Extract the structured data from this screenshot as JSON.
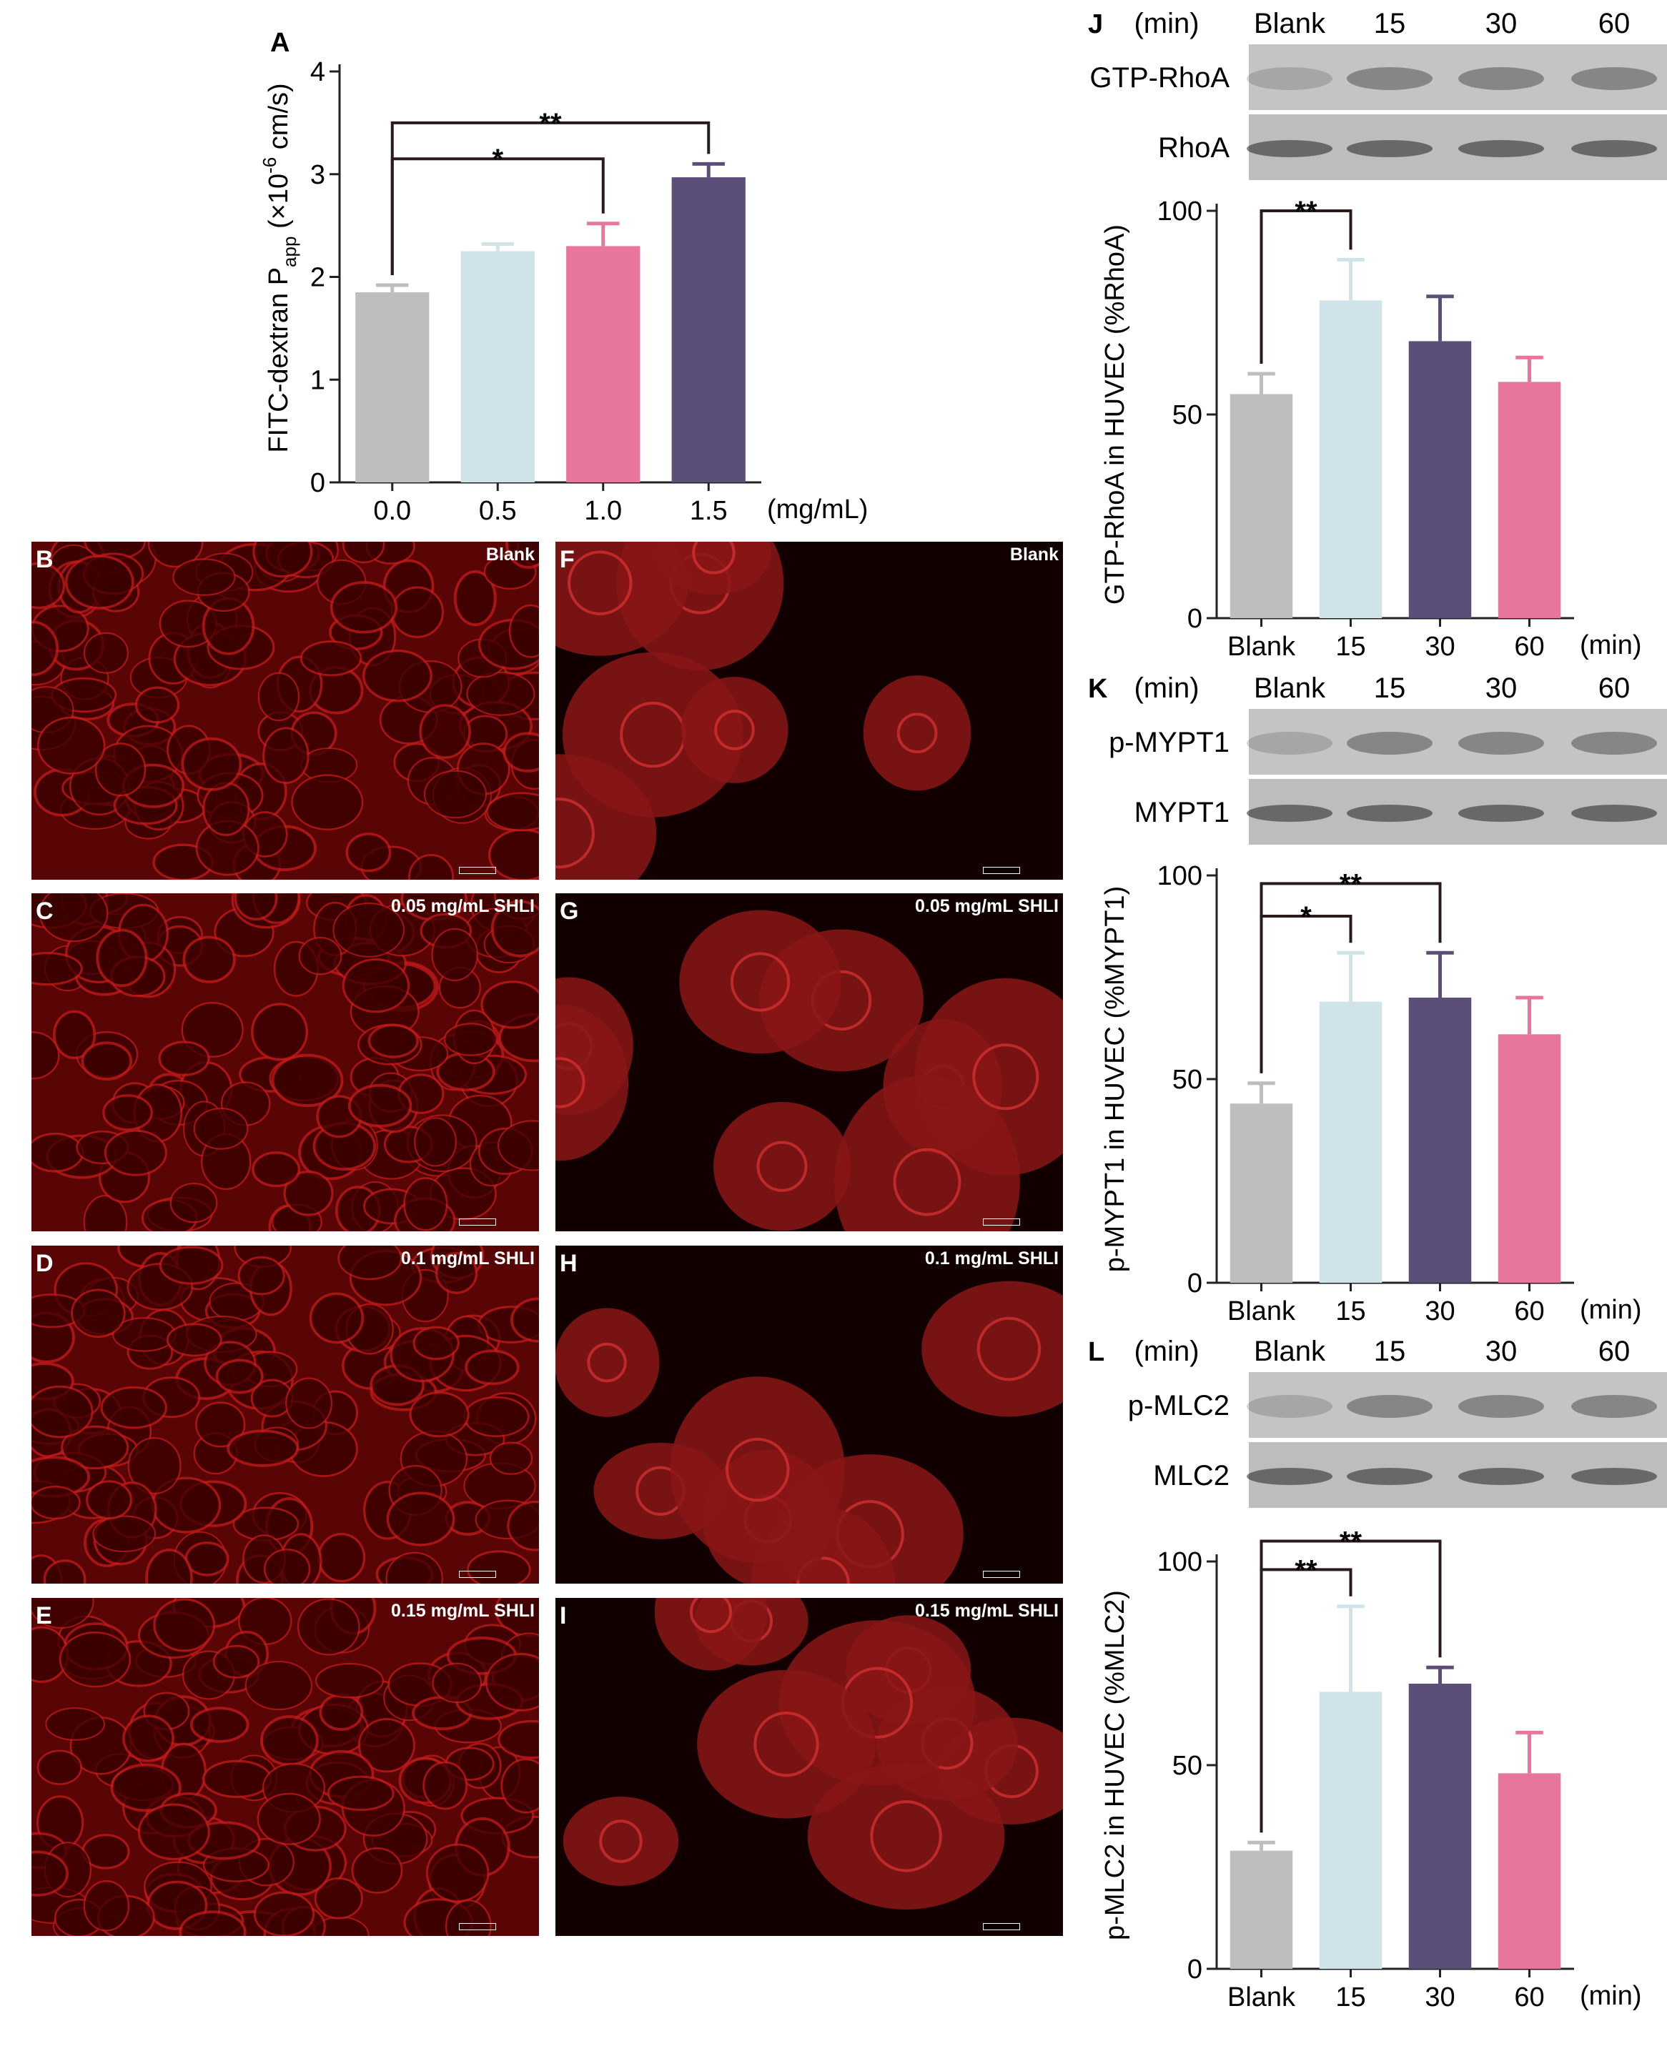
{
  "colors": {
    "blank": "#bebebe",
    "c1": "#cfe3e8",
    "c2": "#e8769a",
    "c3": "#5b4f7a",
    "red_bg": "#3a0000",
    "red_cell": "#c01818"
  },
  "chart_data": [
    {
      "id": "A",
      "type": "bar",
      "panel_letter": "A",
      "categories": [
        "0.0",
        "0.5",
        "1.0",
        "1.5"
      ],
      "values": [
        1.85,
        2.25,
        2.3,
        2.97
      ],
      "errors": [
        0.07,
        0.07,
        0.22,
        0.13
      ],
      "bar_colors": [
        "#bebebe",
        "#cfe3e8",
        "#e8769a",
        "#5b4f7a"
      ],
      "ylim": [
        0,
        4
      ],
      "yticks": [
        "0",
        "1",
        "2",
        "3",
        "4"
      ],
      "ylabel_main": "FITC-dextran P",
      "ylabel_sub": "app",
      "ylabel_tail": " (×10",
      "ylabel_exp": "-6",
      "ylabel_unit": " cm/s)",
      "xunit": "(mg/mL)",
      "significance": [
        {
          "from": 0,
          "to": 3,
          "label": "**",
          "level": 3.5
        },
        {
          "from": 0,
          "to": 2,
          "label": "*",
          "level": 3.15
        }
      ]
    },
    {
      "id": "J",
      "type": "bar",
      "panel_letter": "J",
      "categories": [
        "Blank",
        "15",
        "30",
        "60"
      ],
      "values": [
        55,
        78,
        68,
        58
      ],
      "errors": [
        5,
        10,
        11,
        6
      ],
      "bar_colors": [
        "#bebebe",
        "#cfe3e8",
        "#5b4f7a",
        "#e8769a"
      ],
      "ylim": [
        0,
        100
      ],
      "yticks": [
        "0",
        "50",
        "100"
      ],
      "ylabel": "GTP-RhoA in HUVEC (%RhoA)",
      "xunit": "(min)",
      "significance": [
        {
          "from": 0,
          "to": 1,
          "label": "**",
          "level": 100
        }
      ]
    },
    {
      "id": "K",
      "type": "bar",
      "panel_letter": "K",
      "categories": [
        "Blank",
        "15",
        "30",
        "60"
      ],
      "values": [
        44,
        69,
        70,
        61
      ],
      "errors": [
        5,
        12,
        11,
        9
      ],
      "bar_colors": [
        "#bebebe",
        "#cfe3e8",
        "#5b4f7a",
        "#e8769a"
      ],
      "ylim": [
        0,
        100
      ],
      "yticks": [
        "0",
        "50",
        "100"
      ],
      "ylabel": "p-MYPT1 in HUVEC (%MYPT1)",
      "xunit": "(min)",
      "significance": [
        {
          "from": 0,
          "to": 2,
          "label": "**",
          "level": 98
        },
        {
          "from": 0,
          "to": 1,
          "label": "*",
          "level": 90
        }
      ]
    },
    {
      "id": "L",
      "type": "bar",
      "panel_letter": "L",
      "categories": [
        "Blank",
        "15",
        "30",
        "60"
      ],
      "values": [
        29,
        68,
        70,
        48
      ],
      "errors": [
        2,
        21,
        4,
        10
      ],
      "bar_colors": [
        "#bebebe",
        "#cfe3e8",
        "#5b4f7a",
        "#e8769a"
      ],
      "ylim": [
        0,
        100
      ],
      "yticks": [
        "0",
        "50",
        "100"
      ],
      "ylabel": "p-MLC2 in HUVEC (%MLC2)",
      "xunit": "(min)",
      "significance": [
        {
          "from": 0,
          "to": 2,
          "label": "**",
          "level": 105
        },
        {
          "from": 0,
          "to": 1,
          "label": "**",
          "level": 98
        }
      ]
    }
  ],
  "blots": [
    {
      "letter": "J",
      "header": [
        "(min)",
        "Blank",
        "15",
        "30",
        "60"
      ],
      "rows": [
        "GTP-RhoA",
        "RhoA"
      ]
    },
    {
      "letter": "K",
      "header": [
        "(min)",
        "Blank",
        "15",
        "30",
        "60"
      ],
      "rows": [
        "p-MYPT1",
        "MYPT1"
      ]
    },
    {
      "letter": "L",
      "header": [
        "(min)",
        "Blank",
        "15",
        "30",
        "60"
      ],
      "rows": [
        "p-MLC2",
        "MLC2"
      ]
    }
  ],
  "micrographs": [
    {
      "letter": "B",
      "caption": "Blank"
    },
    {
      "letter": "C",
      "caption": "0.05 mg/mL SHLI"
    },
    {
      "letter": "D",
      "caption": "0.1 mg/mL SHLI"
    },
    {
      "letter": "E",
      "caption": "0.15 mg/mL SHLI"
    },
    {
      "letter": "F",
      "caption": "Blank"
    },
    {
      "letter": "G",
      "caption": "0.05 mg/mL SHLI"
    },
    {
      "letter": "H",
      "caption": "0.1 mg/mL SHLI"
    },
    {
      "letter": "I",
      "caption": "0.15 mg/mL SHLI"
    }
  ]
}
